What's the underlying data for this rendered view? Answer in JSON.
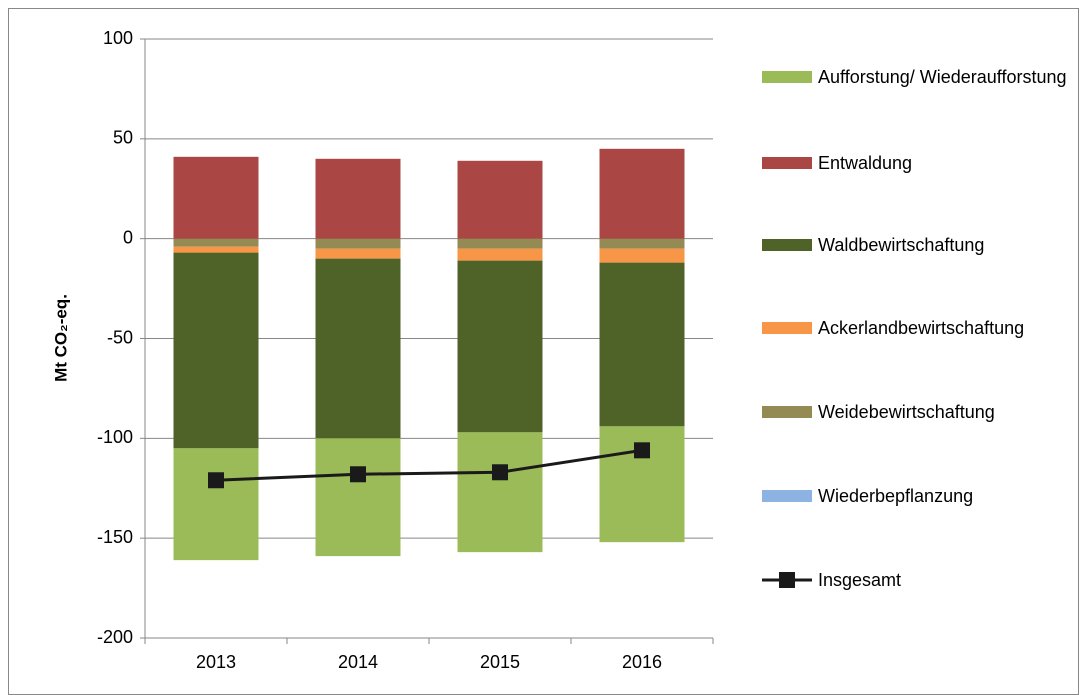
{
  "chart_data": {
    "type": "stacked_bar_line",
    "y_label": "Mt CO₂-eq.",
    "categories": [
      "2013",
      "2014",
      "2015",
      "2016"
    ],
    "series": [
      {
        "name": "Aufforstung/ Wiederaufforstung",
        "color": "#9bbb59",
        "values": [
          -56,
          -59,
          -60,
          -58
        ]
      },
      {
        "name": "Entwaldung",
        "color": "#aa4643",
        "values": [
          41,
          40,
          39,
          45
        ]
      },
      {
        "name": "Waldbewirtschaftung",
        "color": "#4f6228",
        "values": [
          -98,
          -90,
          -86,
          -82
        ]
      },
      {
        "name": "Ackerlandbewirtschaftung",
        "color": "#f79646",
        "values": [
          -3,
          -5,
          -6,
          -7
        ]
      },
      {
        "name": "Weidebewirtschaftung",
        "color": "#948a54",
        "values": [
          -4,
          -5,
          -5,
          -5
        ]
      },
      {
        "name": "Wiederbepflanzung",
        "color": "#8db3e2",
        "values": [
          0,
          0,
          0,
          0
        ]
      },
      {
        "name": "Insgesamt",
        "color": "#1a1a1a",
        "type": "line",
        "values": [
          -121,
          -118,
          -117,
          -106
        ]
      }
    ],
    "ylim": [
      -200,
      100
    ],
    "yticks": [
      -200,
      -150,
      -100,
      -50,
      0,
      50,
      100
    ],
    "grid": true
  }
}
